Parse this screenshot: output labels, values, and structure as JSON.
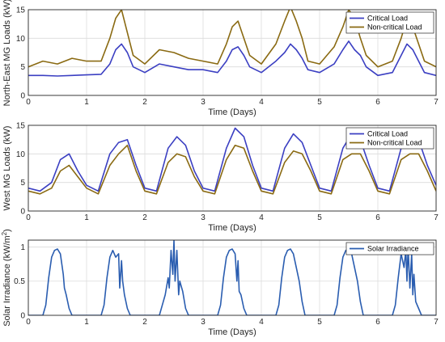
{
  "colors": {
    "critical": "#3b3fc2",
    "noncritical": "#8a6a12",
    "solar": "#2a5db0"
  },
  "chart_data": [
    {
      "type": "line",
      "xlabel": "Time (Days)",
      "ylabel": "North-East MG Loads (kW)",
      "xlim": [
        0,
        7
      ],
      "ylim": [
        0,
        15
      ],
      "xticks": [
        "0",
        "1",
        "2",
        "3",
        "4",
        "5",
        "6",
        "7"
      ],
      "yticks": [
        "0",
        "5",
        "10",
        "15"
      ],
      "grid": true,
      "legend_position": "top-right",
      "series": [
        {
          "name": "Critical Load",
          "x": [
            0,
            0.25,
            0.5,
            0.75,
            1.0,
            1.25,
            1.4,
            1.5,
            1.6,
            1.7,
            1.8,
            2.0,
            2.25,
            2.5,
            2.75,
            3.0,
            3.25,
            3.4,
            3.5,
            3.6,
            3.7,
            3.8,
            4.0,
            4.25,
            4.4,
            4.5,
            4.6,
            4.7,
            4.8,
            5.0,
            5.25,
            5.4,
            5.5,
            5.6,
            5.7,
            5.8,
            6.0,
            6.25,
            6.4,
            6.5,
            6.6,
            6.7,
            6.8,
            7.0
          ],
          "y": [
            3.5,
            3.5,
            3.4,
            3.5,
            3.6,
            3.7,
            5.5,
            8.0,
            9.0,
            7.5,
            5.0,
            4.0,
            5.5,
            5.0,
            4.5,
            4.5,
            4.0,
            6.0,
            8.0,
            8.5,
            7.0,
            5.0,
            4.0,
            6.0,
            7.5,
            9.0,
            8.0,
            6.5,
            4.5,
            4.0,
            5.5,
            8.0,
            9.5,
            8.0,
            7.0,
            5.0,
            3.5,
            4.0,
            7.0,
            9.0,
            8.0,
            6.0,
            4.0,
            3.5
          ]
        },
        {
          "name": "Non-critical Load",
          "x": [
            0,
            0.25,
            0.5,
            0.75,
            1.0,
            1.25,
            1.4,
            1.5,
            1.6,
            1.7,
            1.8,
            2.0,
            2.25,
            2.5,
            2.75,
            3.0,
            3.25,
            3.4,
            3.5,
            3.6,
            3.7,
            3.8,
            4.0,
            4.25,
            4.4,
            4.5,
            4.6,
            4.7,
            4.8,
            5.0,
            5.25,
            5.4,
            5.5,
            5.6,
            5.7,
            5.8,
            6.0,
            6.25,
            6.4,
            6.5,
            6.6,
            6.7,
            6.8,
            7.0
          ],
          "y": [
            5.0,
            6.0,
            5.5,
            6.5,
            6.0,
            6.0,
            10.0,
            13.5,
            15.0,
            11.0,
            7.0,
            5.5,
            8.0,
            7.5,
            6.5,
            6.0,
            5.5,
            9.0,
            12.0,
            13.0,
            10.0,
            7.0,
            5.5,
            9.0,
            13.0,
            15.5,
            13.0,
            10.0,
            6.0,
            5.5,
            8.5,
            12.0,
            15.0,
            13.5,
            10.0,
            7.0,
            5.0,
            6.0,
            10.0,
            13.5,
            12.0,
            9.0,
            6.0,
            5.0
          ]
        }
      ]
    },
    {
      "type": "line",
      "xlabel": "Time (Days)",
      "ylabel": "West MG Loads (kW)",
      "xlim": [
        0,
        7
      ],
      "ylim": [
        0,
        15
      ],
      "xticks": [
        "0",
        "1",
        "2",
        "3",
        "4",
        "5",
        "6",
        "7"
      ],
      "yticks": [
        "0",
        "5",
        "10",
        "15"
      ],
      "grid": true,
      "legend_position": "top-right",
      "series": [
        {
          "name": "Critical Load",
          "x": [
            0,
            0.2,
            0.4,
            0.55,
            0.7,
            0.85,
            1.0,
            1.2,
            1.4,
            1.55,
            1.7,
            1.85,
            2.0,
            2.2,
            2.4,
            2.55,
            2.7,
            2.85,
            3.0,
            3.2,
            3.4,
            3.55,
            3.7,
            3.85,
            4.0,
            4.2,
            4.4,
            4.55,
            4.7,
            4.85,
            5.0,
            5.2,
            5.4,
            5.55,
            5.7,
            5.85,
            6.0,
            6.2,
            6.4,
            6.55,
            6.7,
            6.85,
            7.0
          ],
          "y": [
            4.0,
            3.5,
            5.0,
            9.0,
            10.0,
            7.0,
            4.5,
            3.5,
            10.0,
            12.0,
            12.5,
            8.0,
            4.0,
            3.5,
            11.0,
            13.0,
            11.5,
            7.0,
            4.0,
            3.5,
            11.0,
            14.5,
            13.0,
            8.0,
            4.0,
            3.5,
            11.0,
            13.5,
            12.0,
            8.0,
            4.0,
            3.5,
            11.0,
            13.5,
            12.5,
            8.0,
            4.0,
            3.5,
            11.0,
            13.5,
            12.5,
            8.0,
            4.5
          ]
        },
        {
          "name": "Non-critical Load",
          "x": [
            0,
            0.2,
            0.4,
            0.55,
            0.7,
            0.85,
            1.0,
            1.2,
            1.4,
            1.55,
            1.7,
            1.85,
            2.0,
            2.2,
            2.4,
            2.55,
            2.7,
            2.85,
            3.0,
            3.2,
            3.4,
            3.55,
            3.7,
            3.85,
            4.0,
            4.2,
            4.4,
            4.55,
            4.7,
            4.85,
            5.0,
            5.2,
            5.4,
            5.55,
            5.7,
            5.85,
            6.0,
            6.2,
            6.4,
            6.55,
            6.7,
            6.85,
            7.0
          ],
          "y": [
            3.5,
            3.0,
            4.0,
            7.0,
            8.0,
            6.0,
            4.0,
            3.0,
            8.0,
            10.0,
            11.5,
            7.0,
            3.5,
            3.0,
            8.5,
            10.0,
            9.5,
            6.0,
            3.5,
            3.0,
            9.0,
            11.5,
            11.0,
            7.0,
            3.5,
            3.0,
            8.5,
            10.5,
            10.0,
            7.0,
            3.5,
            3.0,
            9.0,
            10.0,
            10.0,
            7.0,
            3.5,
            3.0,
            9.0,
            10.0,
            10.0,
            7.0,
            3.5
          ]
        }
      ]
    },
    {
      "type": "line",
      "xlabel": "Time (Days)",
      "ylabel": "Solar Irradiance (kW/m2)",
      "xlim": [
        0,
        7
      ],
      "ylim": [
        0,
        1.1
      ],
      "xticks": [
        "0",
        "1",
        "2",
        "3",
        "4",
        "5",
        "6",
        "7"
      ],
      "yticks": [
        "0",
        "0.5",
        "1"
      ],
      "grid": true,
      "legend_position": "top-right",
      "series": [
        {
          "name": "Solar Irradiance",
          "x": [
            0,
            0.25,
            0.3,
            0.35,
            0.4,
            0.45,
            0.5,
            0.55,
            0.6,
            0.62,
            0.65,
            0.7,
            0.75,
            1.25,
            1.3,
            1.35,
            1.4,
            1.45,
            1.5,
            1.55,
            1.57,
            1.6,
            1.62,
            1.65,
            1.7,
            1.75,
            2.25,
            2.3,
            2.35,
            2.4,
            2.42,
            2.45,
            2.48,
            2.5,
            2.52,
            2.55,
            2.58,
            2.6,
            2.65,
            2.7,
            2.75,
            3.25,
            3.3,
            3.35,
            3.4,
            3.45,
            3.5,
            3.55,
            3.58,
            3.6,
            3.62,
            3.65,
            3.7,
            3.75,
            4.25,
            4.3,
            4.35,
            4.4,
            4.45,
            4.5,
            4.55,
            4.6,
            4.65,
            4.7,
            4.75,
            5.25,
            5.3,
            5.35,
            5.4,
            5.45,
            5.5,
            5.55,
            5.6,
            5.65,
            5.7,
            5.75,
            6.25,
            6.3,
            6.35,
            6.4,
            6.45,
            6.48,
            6.5,
            6.52,
            6.55,
            6.58,
            6.6,
            6.62,
            6.65,
            6.7,
            6.75,
            7.0
          ],
          "y": [
            0,
            0,
            0.15,
            0.55,
            0.85,
            0.95,
            0.97,
            0.9,
            0.6,
            0.4,
            0.3,
            0.1,
            0,
            0,
            0.15,
            0.55,
            0.85,
            0.95,
            0.85,
            0.9,
            0.4,
            0.8,
            0.5,
            0.3,
            0.1,
            0,
            0,
            0.15,
            0.3,
            0.55,
            0.4,
            0.95,
            0.6,
            1.1,
            0.5,
            0.95,
            0.3,
            0.5,
            0.35,
            0.1,
            0,
            0,
            0.15,
            0.55,
            0.85,
            0.95,
            0.97,
            0.9,
            0.5,
            0.8,
            0.35,
            0.3,
            0.1,
            0,
            0,
            0.15,
            0.55,
            0.85,
            0.95,
            0.97,
            0.9,
            0.7,
            0.5,
            0.2,
            0,
            0,
            0.15,
            0.55,
            0.85,
            0.95,
            0.97,
            0.9,
            0.7,
            0.5,
            0.2,
            0,
            0,
            0.15,
            0.55,
            0.9,
            0.7,
            0.95,
            0.5,
            1.0,
            0.4,
            0.9,
            0.3,
            0.6,
            0.2,
            0.1,
            0,
            0
          ]
        }
      ]
    }
  ]
}
